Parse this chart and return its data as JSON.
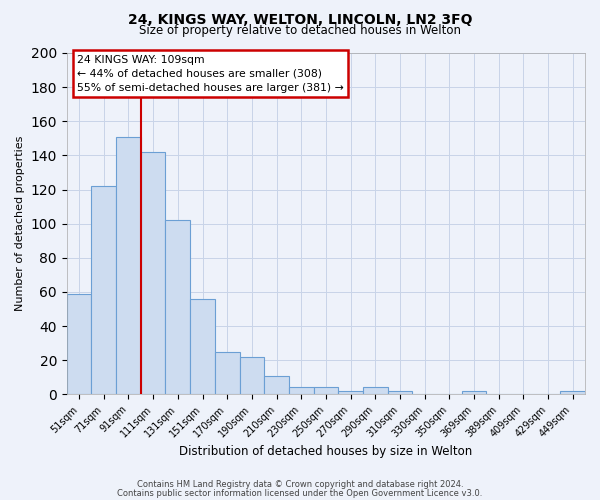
{
  "title": "24, KINGS WAY, WELTON, LINCOLN, LN2 3FQ",
  "subtitle": "Size of property relative to detached houses in Welton",
  "xlabel": "Distribution of detached houses by size in Welton",
  "ylabel": "Number of detached properties",
  "bar_labels": [
    "51sqm",
    "71sqm",
    "91sqm",
    "111sqm",
    "131sqm",
    "151sqm",
    "170sqm",
    "190sqm",
    "210sqm",
    "230sqm",
    "250sqm",
    "270sqm",
    "290sqm",
    "310sqm",
    "330sqm",
    "350sqm",
    "369sqm",
    "389sqm",
    "409sqm",
    "429sqm",
    "449sqm"
  ],
  "bar_heights": [
    59,
    122,
    151,
    142,
    102,
    56,
    25,
    22,
    11,
    4,
    4,
    2,
    4,
    2,
    0,
    0,
    2,
    0,
    0,
    0,
    2
  ],
  "bar_color": "#cddcf0",
  "bar_edge_color": "#6b9fd4",
  "vline_color": "#cc0000",
  "annotation_title": "24 KINGS WAY: 109sqm",
  "annotation_line1": "← 44% of detached houses are smaller (308)",
  "annotation_line2": "55% of semi-detached houses are larger (381) →",
  "annotation_box_edge": "#cc0000",
  "ylim": [
    0,
    200
  ],
  "yticks": [
    0,
    20,
    40,
    60,
    80,
    100,
    120,
    140,
    160,
    180,
    200
  ],
  "footer1": "Contains HM Land Registry data © Crown copyright and database right 2024.",
  "footer2": "Contains public sector information licensed under the Open Government Licence v3.0.",
  "bg_color": "#eef2fa",
  "grid_color": "#c8d4e8"
}
